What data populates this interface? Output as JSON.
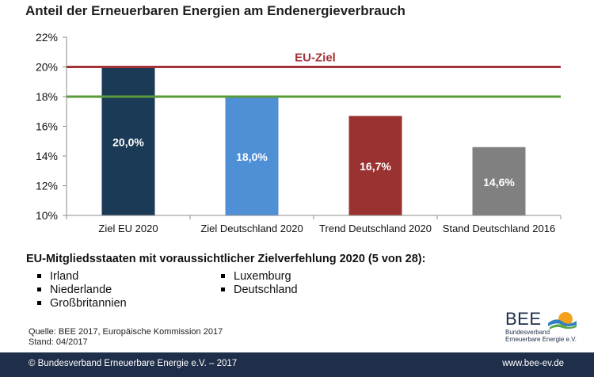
{
  "title": "Anteil der Erneuerbaren Energien am Endenergieverbrauch",
  "chart_data": {
    "type": "bar",
    "categories": [
      "Ziel EU 2020",
      "Ziel Deutschland 2020",
      "Trend Deutschland 2020",
      "Stand Deutschland 2016"
    ],
    "values": [
      20.0,
      18.0,
      16.7,
      14.6
    ],
    "value_labels": [
      "20,0%",
      "18,0%",
      "16,7%",
      "14,6%"
    ],
    "colors": [
      "#1b3a55",
      "#4f8fd6",
      "#9a3232",
      "#808080"
    ],
    "ylim": [
      10,
      22
    ],
    "yticks": [
      10,
      12,
      14,
      16,
      18,
      20,
      22
    ],
    "ytick_labels": [
      "10%",
      "12%",
      "14%",
      "16%",
      "18%",
      "20%",
      "22%"
    ],
    "reference_lines": [
      {
        "value": 20,
        "color": "#a43338",
        "label": "EU-Ziel"
      },
      {
        "value": 18,
        "color": "#5a9a3a",
        "label": ""
      }
    ],
    "grid": false,
    "xlabel": "",
    "ylabel": ""
  },
  "section": {
    "title": "EU-Mitgliedsstaaten mit voraussichtlicher Zielverfehlung 2020 (5 von 28):",
    "left_items": [
      "Irland",
      "Niederlande",
      "Großbritannien"
    ],
    "right_items": [
      "Luxemburg",
      "Deutschland"
    ]
  },
  "source": {
    "line1": "Quelle: BEE 2017, Europäische Kommission 2017",
    "line2": "Stand: 04/2017"
  },
  "logo": {
    "name": "BEE",
    "line1": "Bundesverband",
    "line2": "Erneuerbare Energie e.V."
  },
  "footer": {
    "left": "© Bundesverband Erneuerbare Energie e.V. – 2017",
    "right": "www.bee-ev.de"
  }
}
